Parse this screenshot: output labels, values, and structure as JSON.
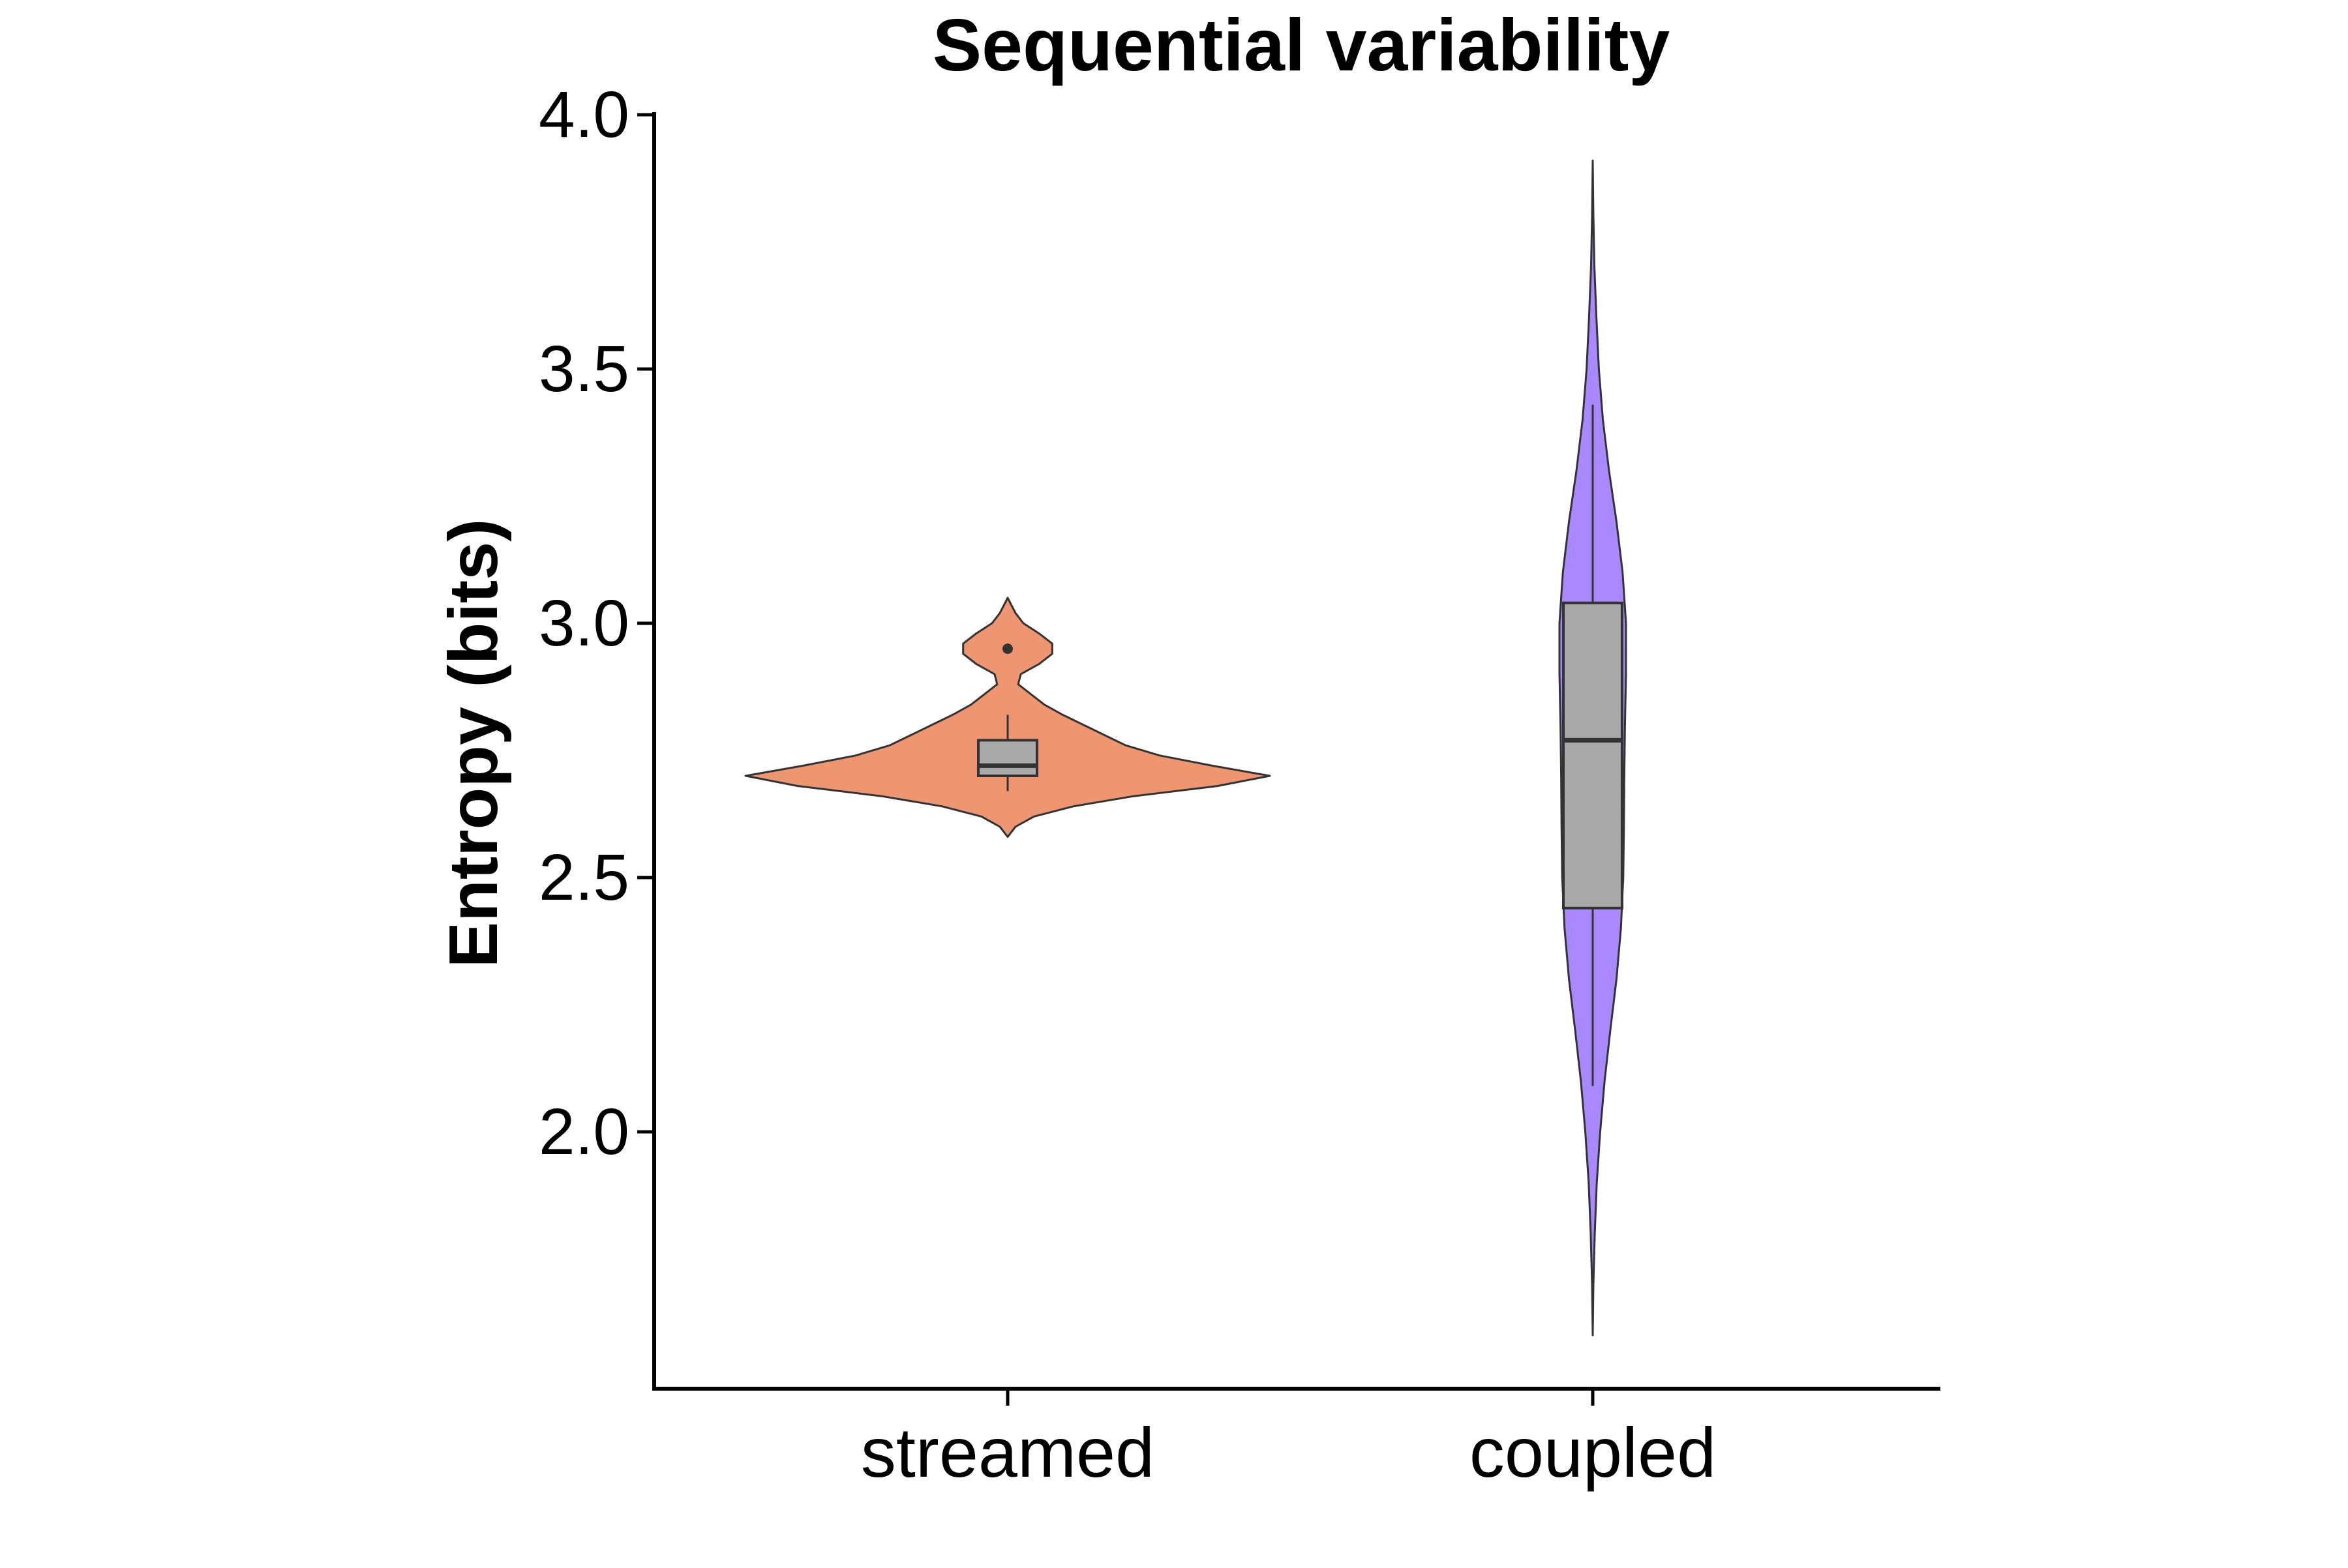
{
  "chart_data": {
    "type": "violin",
    "title": "Sequential variability",
    "xlabel": "",
    "ylabel": "Entropy (bits)",
    "ylim": [
      1.5,
      4.0
    ],
    "yticks": [
      2.0,
      2.5,
      3.0,
      3.5,
      4.0
    ],
    "ytick_labels": [
      "2.0",
      "2.5",
      "3.0",
      "3.5",
      "4.0"
    ],
    "grid": false,
    "legend": "none",
    "categories": [
      "streamed",
      "coupled"
    ],
    "series": [
      {
        "category": "streamed",
        "color": "#EE9572",
        "violin_range": [
          2.58,
          3.05
        ],
        "density": [
          [
            2.58,
            0.0
          ],
          [
            2.6,
            0.03
          ],
          [
            2.62,
            0.1
          ],
          [
            2.64,
            0.25
          ],
          [
            2.66,
            0.48
          ],
          [
            2.68,
            0.8
          ],
          [
            2.7,
            1.0
          ],
          [
            2.72,
            0.78
          ],
          [
            2.74,
            0.58
          ],
          [
            2.76,
            0.45
          ],
          [
            2.78,
            0.37
          ],
          [
            2.8,
            0.29
          ],
          [
            2.82,
            0.21
          ],
          [
            2.84,
            0.14
          ],
          [
            2.86,
            0.09
          ],
          [
            2.88,
            0.04
          ],
          [
            2.9,
            0.05
          ],
          [
            2.92,
            0.12
          ],
          [
            2.94,
            0.17
          ],
          [
            2.96,
            0.17
          ],
          [
            2.98,
            0.12
          ],
          [
            3.0,
            0.06
          ],
          [
            3.02,
            0.03
          ],
          [
            3.05,
            0.0
          ]
        ],
        "box": {
          "q1": 2.7,
          "median": 2.72,
          "q3": 2.77,
          "whisker_low": 2.67,
          "whisker_high": 2.82
        },
        "outliers": [
          2.95
        ]
      },
      {
        "category": "coupled",
        "color": "#AA88FF",
        "violin_range": [
          1.6,
          3.91
        ],
        "density": [
          [
            1.6,
            0.0
          ],
          [
            1.7,
            0.02
          ],
          [
            1.8,
            0.06
          ],
          [
            1.9,
            0.12
          ],
          [
            2.0,
            0.22
          ],
          [
            2.1,
            0.35
          ],
          [
            2.2,
            0.52
          ],
          [
            2.3,
            0.7
          ],
          [
            2.4,
            0.83
          ],
          [
            2.5,
            0.9
          ],
          [
            2.6,
            0.92
          ],
          [
            2.7,
            0.93
          ],
          [
            2.8,
            0.95
          ],
          [
            2.9,
            0.98
          ],
          [
            3.0,
            0.98
          ],
          [
            3.1,
            0.88
          ],
          [
            3.2,
            0.7
          ],
          [
            3.3,
            0.48
          ],
          [
            3.4,
            0.3
          ],
          [
            3.5,
            0.18
          ],
          [
            3.6,
            0.11
          ],
          [
            3.7,
            0.05
          ],
          [
            3.8,
            0.02
          ],
          [
            3.91,
            0.0
          ]
        ],
        "box": {
          "q1": 2.44,
          "median": 2.77,
          "q3": 3.04,
          "whisker_low": 2.09,
          "whisker_high": 3.43
        },
        "outliers": []
      }
    ]
  }
}
